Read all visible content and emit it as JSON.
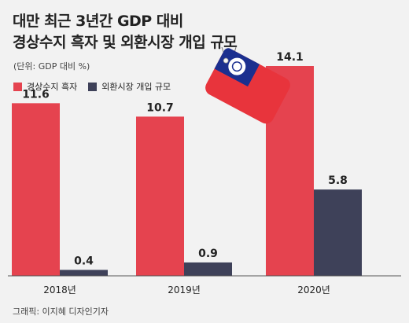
{
  "title_line1": "대만 최근 3년간 GDP 대비",
  "title_line2": "경상수지 흑자 및 외환시장 개입 규모",
  "unit": "(단위: GDP 대비 %)",
  "credit": "그래픽: 이지혜 디자인기자",
  "colors": {
    "current_account": "#e5434f",
    "fx_intervention": "#3e4159",
    "background": "#f2f2f2"
  },
  "flag_icon": "taiwan-flag-tag-icon",
  "chart_data": {
    "type": "bar",
    "title": "대만 최근 3년간 GDP 대비 경상수지 흑자 및 외환시장 개입 규모",
    "categories": [
      "2018년",
      "2019년",
      "2020년"
    ],
    "series": [
      {
        "name": "경상수지 흑자",
        "values": [
          11.6,
          10.7,
          14.1
        ],
        "labels": [
          "11.6",
          "10.7",
          "14.1"
        ]
      },
      {
        "name": "외환시장 개입 규모",
        "values": [
          0.4,
          0.9,
          5.8
        ],
        "labels": [
          "0.4",
          "0.9",
          "5.8"
        ]
      }
    ],
    "ylim": [
      0,
      15
    ],
    "grid": false,
    "legend_position": "top-left"
  }
}
